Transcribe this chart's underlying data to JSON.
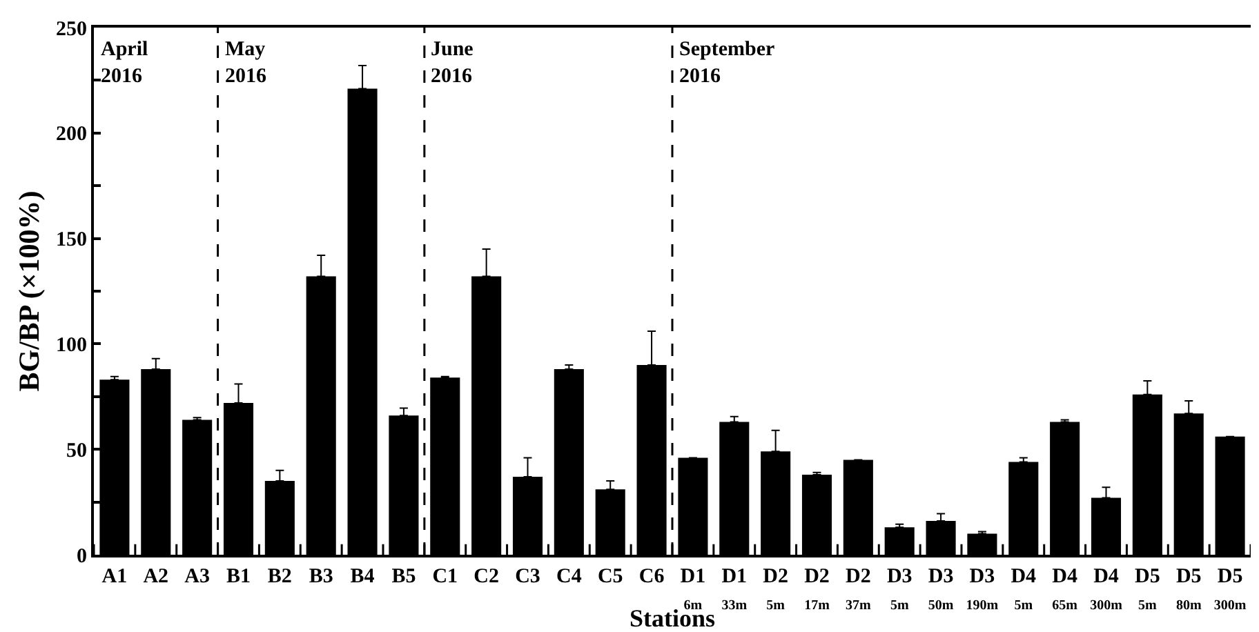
{
  "chart_data": {
    "type": "bar",
    "xlabel": "Stations",
    "ylabel": "BG/BP (×100%)",
    "categories": [
      "A1",
      "A2",
      "A3",
      "B1",
      "B2",
      "B3",
      "B4",
      "B5",
      "C1",
      "C2",
      "C3",
      "C4",
      "C5",
      "C6",
      "D1\n6m",
      "D1\n33m",
      "D2\n5m",
      "D2\n17m",
      "D2\n37m",
      "D3\n5m",
      "D3\n50m",
      "D3\n190m",
      "D4\n5m",
      "D4\n65m",
      "D4\n300m",
      "D5\n5m",
      "D5\n80m",
      "D5\n300m"
    ],
    "values": [
      83,
      88,
      64,
      72,
      35,
      132,
      221,
      66,
      84,
      132,
      37,
      88,
      31,
      90,
      46,
      63,
      49,
      38,
      45,
      13,
      16,
      10,
      44,
      63,
      27,
      76,
      67,
      56
    ],
    "errors": [
      [
        83,
        84.5
      ],
      [
        88,
        93
      ],
      [
        64,
        65
      ],
      [
        72,
        81
      ],
      [
        35,
        40
      ],
      [
        132,
        142
      ],
      [
        221,
        232
      ],
      [
        66,
        69.5
      ],
      [
        84,
        84.5
      ],
      [
        132,
        145
      ],
      [
        37,
        46
      ],
      [
        88,
        90
      ],
      [
        31,
        35
      ],
      [
        90,
        106
      ],
      null,
      [
        63,
        65.5
      ],
      [
        49,
        59
      ],
      [
        38,
        39
      ],
      null,
      [
        13,
        14.5
      ],
      [
        16,
        19.5
      ],
      [
        10,
        11
      ],
      [
        44,
        46
      ],
      [
        63,
        64
      ],
      [
        27,
        32
      ],
      [
        76,
        82.5
      ],
      [
        67,
        73
      ],
      null
    ],
    "color": "#000000",
    "ylim": [
      0,
      250
    ],
    "yticks": [
      0,
      {
        "value": 25,
        "label": null
      },
      50,
      {
        "value": 75,
        "label": null
      },
      100,
      {
        "value": 125,
        "label": null
      },
      150,
      {
        "value": 175,
        "label": null
      },
      200,
      {
        "value": 225,
        "label": null
      },
      250
    ],
    "annotations": [
      "April\n2016",
      "May\n2016",
      "June\n2016",
      "September\n2016"
    ],
    "grid": false
  }
}
